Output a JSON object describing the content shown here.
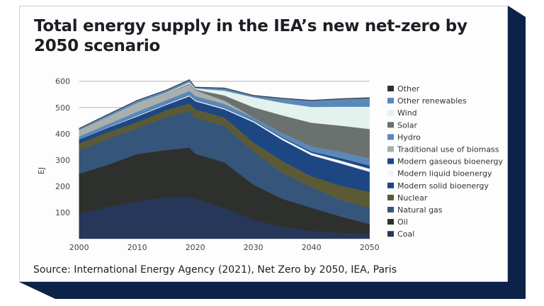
{
  "title": "Total energy supply in the IEA’s new net-zero by 2050 scenario",
  "source": "Source: International Energy Agency (2021), Net Zero by 2050, IEA, Paris",
  "colors": {
    "card_shadow": "#0c2248",
    "gridline": "#b5b5b5"
  },
  "chart_data": {
    "type": "area",
    "stacked": true,
    "title": "Total energy supply in the IEA’s new net-zero by 2050 scenario",
    "ylabel": "EJ",
    "xlabel": "",
    "xlim": [
      2000,
      2050
    ],
    "ylim": [
      0,
      600
    ],
    "x_ticks": [
      "2000",
      "2010",
      "2020",
      "2030",
      "2040",
      "2050"
    ],
    "y_ticks": [
      "100",
      "200",
      "300",
      "400",
      "500",
      "600"
    ],
    "grid": "horizontal",
    "legend_placement": "right",
    "x": [
      2000,
      2005,
      2010,
      2015,
      2019,
      2020,
      2025,
      2030,
      2035,
      2040,
      2045,
      2050
    ],
    "series": [
      {
        "name": "Coal",
        "color": "#263759",
        "values": [
          96,
          121,
          143,
          159,
          159,
          152,
          116,
          72,
          45,
          29,
          22,
          18
        ]
      },
      {
        "name": "Oil",
        "color": "#2e302d",
        "values": [
          152,
          161,
          180,
          179,
          188,
          172,
          175,
          134,
          107,
          89,
          63,
          38
        ]
      },
      {
        "name": "Natural gas",
        "color": "#36557a",
        "values": [
          88,
          99,
          98,
          125,
          139,
          137,
          139,
          126,
          99,
          79,
          63,
          62
        ]
      },
      {
        "name": "Nuclear",
        "color": "#5c5a35",
        "values": [
          27,
          25,
          23,
          27,
          29,
          32,
          32,
          35,
          45,
          41,
          54,
          61
        ]
      },
      {
        "name": "Modern solid bioenergy",
        "color": "#1d4783",
        "values": [
          16,
          18,
          22,
          20,
          28,
          31,
          31,
          77,
          80,
          80,
          85,
          76
        ]
      },
      {
        "name": "Modern liquid bioenergy",
        "color": "#f2f5f7",
        "values": [
          1,
          2,
          3,
          3,
          4,
          4,
          4,
          5,
          7,
          9,
          11,
          12
        ]
      },
      {
        "name": "Modern gaseous bioenergy",
        "color": "#1d4783",
        "values": [
          1,
          1,
          1,
          1,
          1,
          1,
          1,
          2,
          3,
          5,
          9,
          12
        ]
      },
      {
        "name": "Hydro",
        "color": "#5a88ba",
        "values": [
          9,
          10,
          14,
          14,
          15,
          15,
          16,
          12,
          16,
          20,
          24,
          27
        ]
      },
      {
        "name": "Traditional use of biomass",
        "color": "#a9afad",
        "values": [
          24,
          28,
          32,
          26,
          25,
          22,
          12,
          0,
          0,
          0,
          0,
          0
        ]
      },
      {
        "name": "Solar",
        "color": "#6a716e",
        "values": [
          0,
          0,
          0,
          1,
          3,
          3,
          20,
          38,
          68,
          90,
          100,
          112
        ]
      },
      {
        "name": "Wind",
        "color": "#e4f2ee",
        "values": [
          0,
          0,
          1,
          2,
          5,
          4,
          18,
          38,
          48,
          60,
          72,
          85
        ]
      },
      {
        "name": "Other renewables",
        "color": "#5a88ba",
        "values": [
          5,
          8,
          9,
          8,
          9,
          3,
          9,
          6,
          16,
          24,
          29,
          33
        ]
      },
      {
        "name": "Other",
        "color": "#2e302d",
        "values": [
          2,
          2,
          2,
          2,
          2,
          2,
          2,
          2,
          2,
          2,
          2,
          2
        ]
      }
    ],
    "legend_order": [
      "Other",
      "Other renewables",
      "Wind",
      "Solar",
      "Hydro",
      "Traditional use of biomass",
      "Modern gaseous bioenergy",
      "Modern liquid bioenergy",
      "Modern solid bioenergy",
      "Nuclear",
      "Natural gas",
      "Oil",
      "Coal"
    ]
  }
}
